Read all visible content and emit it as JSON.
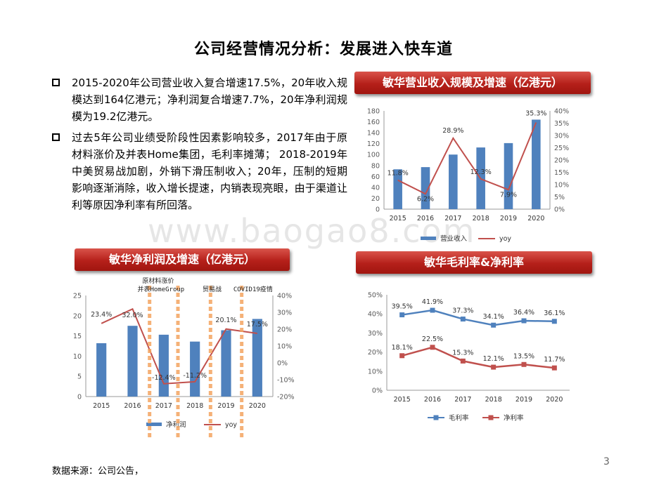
{
  "title": "公司经营情况分析：发展进入快车道",
  "bullets": [
    "2015-2020年公司营业收入复合增速17.5%，20年收入规模达到164亿港元；净利润复合增速7.7%，20年净利润规模为19.2亿港元。",
    "过去5年公司业绩受阶段性因素影响较多，2017年由于原材料涨价及并表Home集团，毛利率摊薄； 2018-2019年中美贸易战加剧，外销下滑压制收入；20年，压制的短期影响逐渐消除，收入增长提速，内销表现亮眼，由于渠道让利等原因净利率有所回落。"
  ],
  "watermark": "www.baogao8.com",
  "source": "数据来源：公司公告，",
  "page_number": "3",
  "banners": {
    "revenue": "敏华营业收入规模及增速（亿港元）",
    "profit": "敏华净利润及增速（亿港元）",
    "margin": "敏华毛利率&净利率"
  },
  "colors": {
    "bar": "#4f81bd",
    "line_red": "#c0504d",
    "banner": "#b5201a",
    "marker_bar": "#f4a460"
  },
  "chart_data": [
    {
      "type": "bar",
      "categories": [
        "2015",
        "2016",
        "2017",
        "2018",
        "2019",
        "2020"
      ],
      "series": [
        {
          "name": "营业收入",
          "type": "bar",
          "axis": "left",
          "values": [
            73,
            77,
            100,
            113,
            121,
            164
          ]
        },
        {
          "name": "yoy",
          "type": "line",
          "axis": "right",
          "values": [
            11.8,
            6.2,
            28.9,
            12.3,
            7.9,
            35.3
          ],
          "labels": [
            "11.8%",
            "6.2%",
            "28.9%",
            "12.3%",
            "7.9%",
            "35.3%"
          ]
        }
      ],
      "ylim": [
        0,
        180
      ],
      "yticks": [
        "0",
        "20",
        "40",
        "60",
        "80",
        "100",
        "120",
        "140",
        "160",
        "180"
      ],
      "y2lim": [
        0,
        40
      ],
      "y2ticks": [
        "0%",
        "5%",
        "10%",
        "15%",
        "20%",
        "25%",
        "30%",
        "35%",
        "40%"
      ],
      "legend": "bottom"
    },
    {
      "type": "bar",
      "categories": [
        "2015",
        "2016",
        "2017",
        "2018",
        "2019",
        "2020"
      ],
      "series": [
        {
          "name": "净利润",
          "type": "bar",
          "axis": "left",
          "values": [
            13.2,
            17.5,
            15.3,
            13.6,
            16.4,
            19.2
          ]
        },
        {
          "name": "yoy",
          "type": "line",
          "axis": "right",
          "values": [
            23.4,
            32.0,
            -12.4,
            -11.2,
            20.1,
            17.5
          ],
          "labels": [
            "23.4%",
            "32.0%",
            "-12.4%",
            "-11.2%",
            "20.1%",
            "17.5%"
          ]
        }
      ],
      "ylim": [
        0,
        25
      ],
      "yticks": [
        "0",
        "5",
        "10",
        "15",
        "20",
        "25"
      ],
      "y2lim": [
        -20,
        40
      ],
      "y2ticks": [
        "-20%",
        "-10%",
        "0%",
        "10%",
        "20%",
        "30%",
        "40%"
      ],
      "annotations": [
        "原材料涨价",
        "并表HomeGroup",
        "贸易战",
        "COVID19疫情"
      ],
      "legend": "bottom"
    },
    {
      "type": "line",
      "categories": [
        "2015",
        "2016",
        "2017",
        "2018",
        "2019",
        "2020"
      ],
      "series": [
        {
          "name": "毛利率",
          "values": [
            39.5,
            41.9,
            37.3,
            34.1,
            36.4,
            36.1
          ],
          "labels": [
            "39.5%",
            "41.9%",
            "37.3%",
            "34.1%",
            "36.4%",
            "36.1%"
          ],
          "color": "#4f81bd"
        },
        {
          "name": "净利率",
          "values": [
            18.1,
            22.5,
            15.3,
            12.1,
            13.5,
            11.7
          ],
          "labels": [
            "18.1%",
            "22.5%",
            "15.3%",
            "12.1%",
            "13.5%",
            "11.7%"
          ],
          "color": "#c0504d"
        }
      ],
      "ylim": [
        0,
        50
      ],
      "yticks": [
        "0%",
        "10%",
        "20%",
        "30%",
        "40%",
        "50%"
      ],
      "legend": "bottom"
    }
  ]
}
